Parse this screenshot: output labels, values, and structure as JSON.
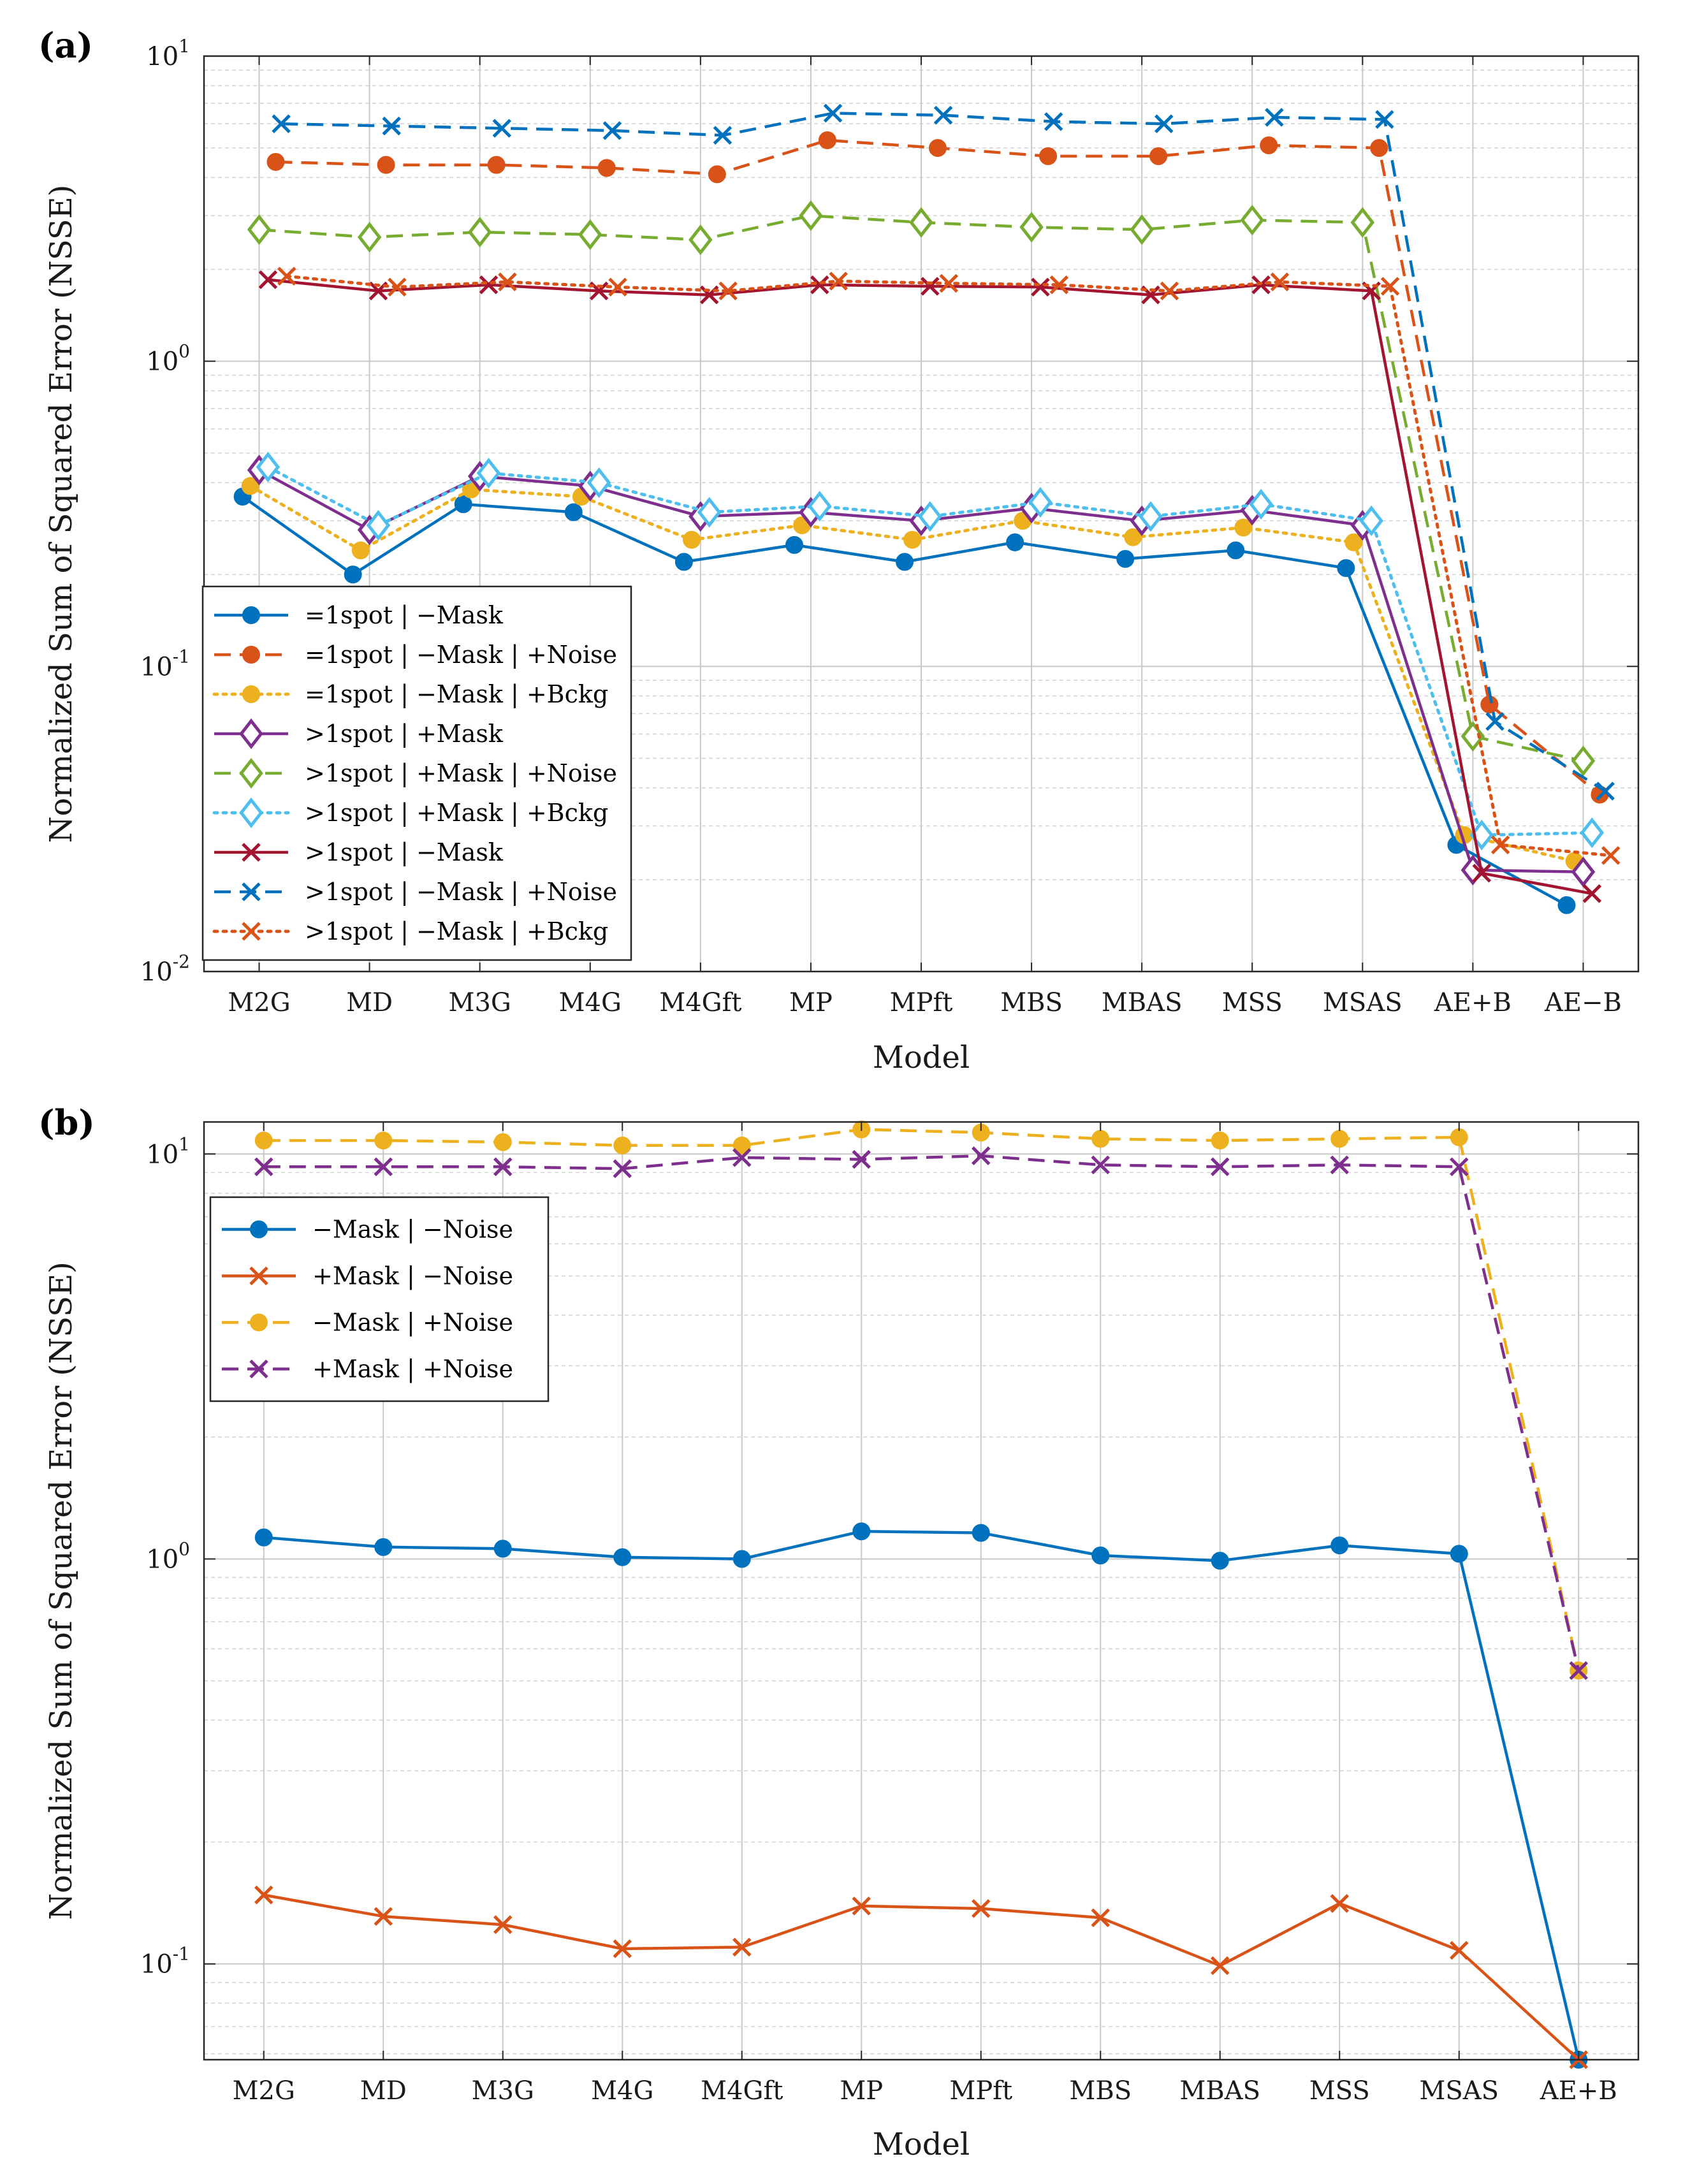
{
  "chart_data": [
    {
      "panel_label": "(a)",
      "type": "line",
      "xlabel": "Model",
      "ylabel": "Normalized Sum of Squared Error (NSSE)",
      "yscale": "log",
      "ylim": [
        0.01,
        10
      ],
      "y_ticks": [
        {
          "base": "10",
          "exp": "-2",
          "value": 0.01
        },
        {
          "base": "10",
          "exp": "-1",
          "value": 0.1
        },
        {
          "base": "10",
          "exp": "0",
          "value": 1
        },
        {
          "base": "10",
          "exp": "1",
          "value": 10
        }
      ],
      "grid": true,
      "legend_position": "lower-left",
      "categories": [
        "M2G",
        "MD",
        "M3G",
        "M4G",
        "M4Gft",
        "MP",
        "MPft",
        "MBS",
        "MBAS",
        "MSS",
        "MSAS",
        "AE+B",
        "AE−B"
      ],
      "series": [
        {
          "name": "=1spot | −Mask",
          "color": "#0072BD",
          "dash": "solid",
          "marker": "dot",
          "offset": -0.15,
          "values": [
            0.36,
            0.2,
            0.34,
            0.32,
            0.22,
            0.25,
            0.22,
            0.255,
            0.225,
            0.24,
            0.21,
            0.026,
            0.0165
          ]
        },
        {
          "name": "=1spot | −Mask | +Noise",
          "color": "#D95319",
          "dash": "dashed",
          "marker": "dot",
          "offset": 0.15,
          "values": [
            4.5,
            4.4,
            4.4,
            4.3,
            4.1,
            5.3,
            5.0,
            4.7,
            4.7,
            5.1,
            5.0,
            0.075,
            0.038
          ]
        },
        {
          "name": "=1spot | −Mask | +Bckg",
          "color": "#EDB120",
          "dash": "dotted",
          "marker": "dot",
          "offset": -0.08,
          "values": [
            0.39,
            0.24,
            0.38,
            0.36,
            0.26,
            0.29,
            0.26,
            0.3,
            0.265,
            0.285,
            0.255,
            0.028,
            0.023
          ]
        },
        {
          "name": ">1spot | +Mask",
          "color": "#7E2F8E",
          "dash": "solid",
          "marker": "diamond",
          "offset": 0,
          "values": [
            0.44,
            0.28,
            0.42,
            0.39,
            0.31,
            0.32,
            0.3,
            0.33,
            0.3,
            0.325,
            0.29,
            0.0215,
            0.0212
          ]
        },
        {
          "name": ">1spot | +Mask | +Noise",
          "color": "#77AC30",
          "dash": "dashed",
          "marker": "diamond",
          "offset": 0,
          "values": [
            2.7,
            2.55,
            2.65,
            2.6,
            2.5,
            3.0,
            2.85,
            2.75,
            2.7,
            2.9,
            2.85,
            0.059,
            0.049
          ]
        },
        {
          "name": ">1spot | +Mask | +Bckg",
          "color": "#4DBEEE",
          "dash": "dotted",
          "marker": "diamond",
          "offset": 0.08,
          "values": [
            0.45,
            0.29,
            0.43,
            0.4,
            0.32,
            0.335,
            0.31,
            0.345,
            0.31,
            0.34,
            0.3,
            0.028,
            0.0285
          ]
        },
        {
          "name": ">1spot | −Mask",
          "color": "#A2142F",
          "dash": "solid",
          "marker": "x",
          "offset": 0.08,
          "values": [
            1.85,
            1.7,
            1.78,
            1.7,
            1.65,
            1.78,
            1.76,
            1.75,
            1.65,
            1.78,
            1.7,
            0.021,
            0.018
          ]
        },
        {
          "name": ">1spot | −Mask | +Noise",
          "color": "#0072BD",
          "dash": "dashed",
          "marker": "x",
          "offset": 0.2,
          "values": [
            6.0,
            5.9,
            5.8,
            5.7,
            5.5,
            6.5,
            6.4,
            6.1,
            6.0,
            6.3,
            6.2,
            0.066,
            0.039
          ]
        },
        {
          "name": ">1spot | −Mask | +Bckg",
          "color": "#D95319",
          "dash": "dotted",
          "marker": "x",
          "offset": 0.25,
          "values": [
            1.9,
            1.75,
            1.82,
            1.75,
            1.7,
            1.83,
            1.8,
            1.78,
            1.7,
            1.82,
            1.76,
            0.026,
            0.024
          ]
        }
      ]
    },
    {
      "panel_label": "(b)",
      "type": "line",
      "xlabel": "Model",
      "ylabel": "Normalized Sum of Squared Error (NSSE)",
      "yscale": "log",
      "ylim": [
        0.058,
        12
      ],
      "y_ticks": [
        {
          "base": "10",
          "exp": "-1",
          "value": 0.1
        },
        {
          "base": "10",
          "exp": "0",
          "value": 1
        },
        {
          "base": "10",
          "exp": "1",
          "value": 10
        }
      ],
      "grid": true,
      "legend_position": "top-left",
      "categories": [
        "M2G",
        "MD",
        "M3G",
        "M4G",
        "M4Gft",
        "MP",
        "MPft",
        "MBS",
        "MBAS",
        "MSS",
        "MSAS",
        "AE+B"
      ],
      "series": [
        {
          "name": "−Mask | −Noise",
          "color": "#0072BD",
          "dash": "solid",
          "marker": "dot",
          "offset": 0,
          "values": [
            1.13,
            1.07,
            1.06,
            1.01,
            1.0,
            1.17,
            1.16,
            1.02,
            0.99,
            1.08,
            1.03,
            0.058
          ]
        },
        {
          "name": "+Mask | −Noise",
          "color": "#D95319",
          "dash": "solid",
          "marker": "x",
          "offset": 0,
          "values": [
            0.148,
            0.131,
            0.125,
            0.109,
            0.11,
            0.139,
            0.137,
            0.13,
            0.099,
            0.141,
            0.108,
            0.058
          ]
        },
        {
          "name": "−Mask | +Noise",
          "color": "#EDB120",
          "dash": "dashed",
          "marker": "dot",
          "offset": 0,
          "values": [
            10.8,
            10.8,
            10.7,
            10.5,
            10.5,
            11.5,
            11.3,
            10.9,
            10.8,
            10.9,
            11.0,
            0.53
          ]
        },
        {
          "name": "+Mask | +Noise",
          "color": "#7E2F8E",
          "dash": "dashed",
          "marker": "x",
          "offset": 0,
          "values": [
            9.3,
            9.3,
            9.3,
            9.2,
            9.8,
            9.7,
            9.9,
            9.4,
            9.3,
            9.4,
            9.3,
            0.53
          ]
        }
      ]
    }
  ]
}
